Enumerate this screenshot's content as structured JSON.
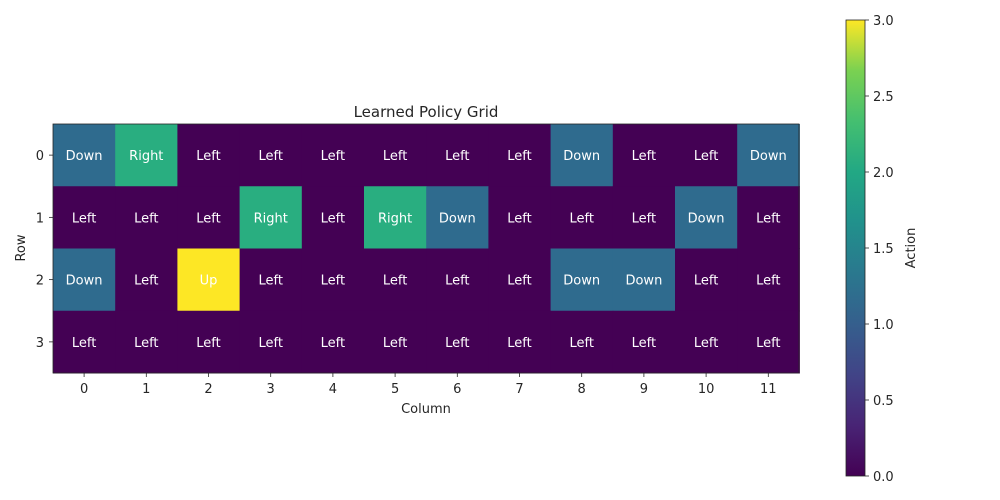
{
  "chart_data": {
    "type": "heatmap",
    "title": "Learned Policy Grid",
    "xlabel": "Column",
    "ylabel": "Row",
    "x_ticks": [
      "0",
      "1",
      "2",
      "3",
      "4",
      "5",
      "6",
      "7",
      "8",
      "9",
      "10",
      "11"
    ],
    "y_ticks": [
      "0",
      "1",
      "2",
      "3"
    ],
    "action_names": [
      "Left",
      "Down",
      "Right",
      "Up"
    ],
    "values": [
      [
        1,
        2,
        0,
        0,
        0,
        0,
        0,
        0,
        1,
        0,
        0,
        1
      ],
      [
        0,
        0,
        0,
        2,
        0,
        2,
        1,
        0,
        0,
        0,
        1,
        0
      ],
      [
        1,
        0,
        3,
        0,
        0,
        0,
        0,
        0,
        1,
        1,
        0,
        0
      ],
      [
        0,
        0,
        0,
        0,
        0,
        0,
        0,
        0,
        0,
        0,
        0,
        0
      ]
    ],
    "labels": [
      [
        "Down",
        "Right",
        "Left",
        "Left",
        "Left",
        "Left",
        "Left",
        "Left",
        "Down",
        "Left",
        "Left",
        "Down"
      ],
      [
        "Left",
        "Left",
        "Left",
        "Right",
        "Left",
        "Right",
        "Down",
        "Left",
        "Left",
        "Left",
        "Down",
        "Left"
      ],
      [
        "Down",
        "Left",
        "Up",
        "Left",
        "Left",
        "Left",
        "Left",
        "Left",
        "Down",
        "Down",
        "Left",
        "Left"
      ],
      [
        "Left",
        "Left",
        "Left",
        "Left",
        "Left",
        "Left",
        "Left",
        "Left",
        "Left",
        "Left",
        "Left",
        "Left"
      ]
    ],
    "colorbar": {
      "label": "Action",
      "range": [
        0,
        3
      ],
      "ticks": [
        "0.0",
        "0.5",
        "1.0",
        "1.5",
        "2.0",
        "2.5",
        "3.0"
      ]
    },
    "colormap": "viridis",
    "text_colors": {
      "default": "#ffffff",
      "Up": "#ffffff"
    }
  }
}
